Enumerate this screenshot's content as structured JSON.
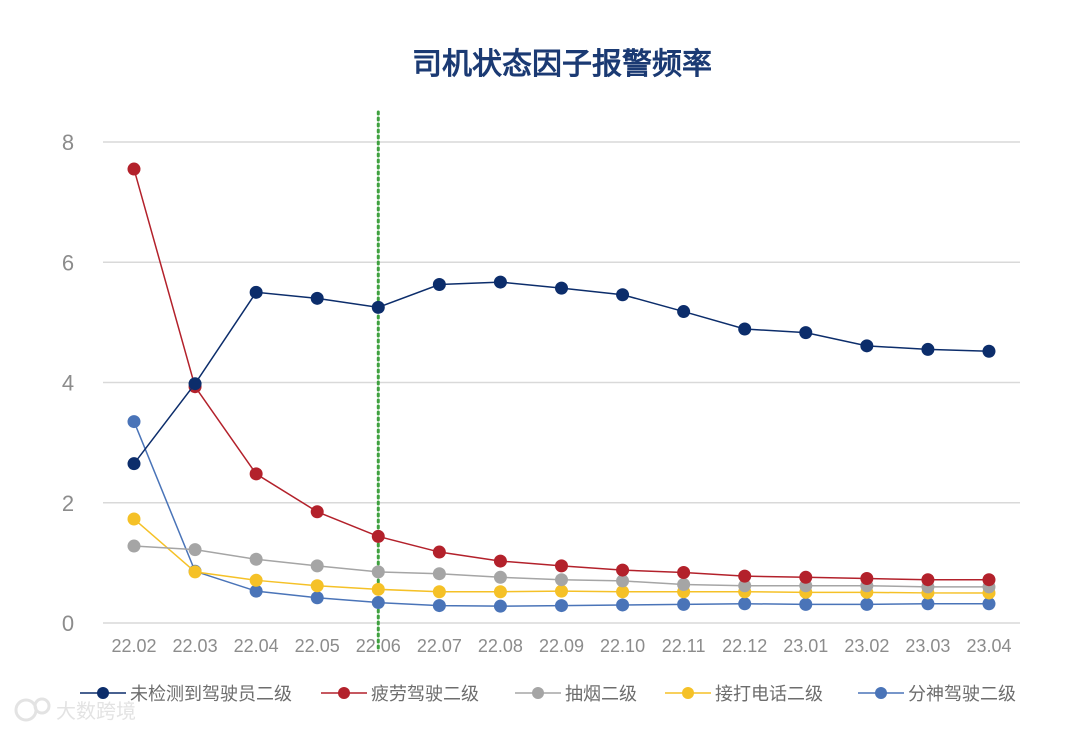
{
  "chart_data": {
    "type": "line",
    "title": "司机状态因子报警频率",
    "xlabel": "",
    "ylabel": "",
    "ylim": [
      0,
      8
    ],
    "yticks": [
      "0",
      "2",
      "4",
      "6",
      "8"
    ],
    "grid": true,
    "legend": "bottom",
    "categories": [
      "22.02",
      "22.03",
      "22.04",
      "22.05",
      "22.06",
      "22.07",
      "22.08",
      "22.09",
      "22.10",
      "22.11",
      "22.12",
      "23.01",
      "23.02",
      "23.03",
      "23.04"
    ],
    "marker_line_at": "22.06",
    "series": [
      {
        "name": "未检测到驾驶员二级",
        "color": "#0c2d6b",
        "values": [
          2.65,
          3.98,
          5.5,
          5.4,
          5.25,
          5.63,
          5.67,
          5.57,
          5.46,
          5.18,
          4.89,
          4.83,
          4.61,
          4.55,
          4.52
        ]
      },
      {
        "name": "疲劳驾驶二级",
        "color": "#b3212b",
        "values": [
          7.55,
          3.93,
          2.48,
          1.85,
          1.44,
          1.18,
          1.03,
          0.95,
          0.88,
          0.84,
          0.78,
          0.76,
          0.74,
          0.72,
          0.72
        ]
      },
      {
        "name": "抽烟二级",
        "color": "#a5a5a5",
        "values": [
          1.28,
          1.22,
          1.06,
          0.95,
          0.85,
          0.82,
          0.76,
          0.72,
          0.7,
          0.64,
          0.62,
          0.62,
          0.62,
          0.6,
          0.6
        ]
      },
      {
        "name": "接打电话二级",
        "color": "#f5c127",
        "values": [
          1.73,
          0.85,
          0.71,
          0.62,
          0.56,
          0.52,
          0.52,
          0.53,
          0.52,
          0.52,
          0.52,
          0.51,
          0.51,
          0.5,
          0.5
        ]
      },
      {
        "name": "分神驾驶二级",
        "color": "#4a74b8",
        "values": [
          3.35,
          0.86,
          0.53,
          0.42,
          0.34,
          0.29,
          0.28,
          0.29,
          0.3,
          0.31,
          0.32,
          0.31,
          0.31,
          0.32,
          0.32
        ]
      }
    ]
  },
  "watermark": "大数跨境",
  "colors": {
    "grid": "#d9d9d9",
    "marker_line": "#3fa13f",
    "title": "#1b3a73"
  }
}
